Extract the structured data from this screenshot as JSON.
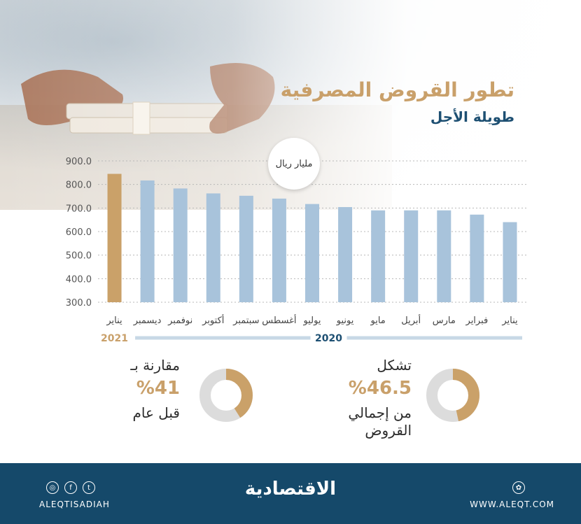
{
  "header": {
    "title": "تطور القروض المصرفية",
    "subtitle": "طويلة الأجل",
    "unit": "مليار ريال"
  },
  "chart_data": {
    "type": "bar",
    "categories": [
      "يناير",
      "فبراير",
      "مارس",
      "أبريل",
      "مايو",
      "يونيو",
      "يوليو",
      "أغسطس",
      "سبتمبر",
      "أكتوبر",
      "نوفمبر",
      "ديسمبر",
      "يناير"
    ],
    "values": [
      640,
      672,
      690,
      690,
      690,
      704,
      717,
      740,
      752,
      762,
      783,
      817,
      845
    ],
    "year_groups": [
      {
        "label": "2020",
        "start": 0,
        "end": 11
      },
      {
        "label": "2021",
        "start": 12,
        "end": 12
      }
    ],
    "yticks": [
      "300.0",
      "400.0",
      "500.0",
      "600.0",
      "700.0",
      "800.0",
      "900.0"
    ],
    "ylim": [
      300,
      900
    ],
    "grid": true,
    "colors": {
      "bar": "#a8c3db",
      "highlight": "#caa169",
      "year2020": "#1d4f72",
      "year2021": "#c9a06a"
    }
  },
  "stats": {
    "share": {
      "label": "تشكل",
      "value": "%46.5",
      "note_line1": "من إجمالي",
      "note_line2": "القروض",
      "fraction": 0.465
    },
    "growth": {
      "label": "مقارنة بـ",
      "value": "%41",
      "note": "قبل عام",
      "fraction": 0.41
    },
    "donut_colors": {
      "fill": "#caa169",
      "track": "#dcdcdc"
    }
  },
  "footer": {
    "brand": "الاقتصادية",
    "handle": "ALEQTISADIAH",
    "website": "WWW.ALEQT.COM",
    "social_icons": [
      "instagram-icon",
      "facebook-icon",
      "twitter-icon"
    ],
    "web_icon": "globe-icon"
  }
}
